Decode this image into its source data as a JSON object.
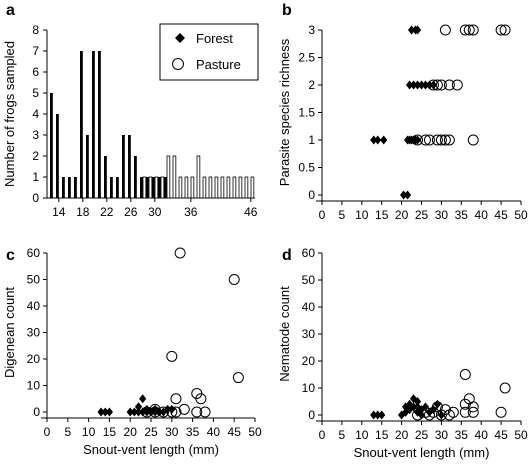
{
  "colors": {
    "forest": "#000000",
    "pasture_fill": "#ffffff",
    "axis": "#000000"
  },
  "legend": {
    "forest": "Forest",
    "pasture": "Pasture",
    "placement": "top-right"
  },
  "chart_data": [
    {
      "id": "a",
      "letter": "a",
      "type": "bar",
      "title": "",
      "xlabel": "",
      "ylabel": "Number of frogs sampled",
      "ylim": [
        0,
        8
      ],
      "yticks": [
        0,
        1,
        2,
        3,
        4,
        5,
        6,
        7,
        8
      ],
      "categories": [
        13,
        14,
        15,
        16,
        17,
        18,
        19,
        20,
        21,
        22,
        23,
        24,
        25,
        26,
        27,
        28,
        29,
        30,
        31,
        32,
        33,
        34,
        35,
        36,
        37,
        38,
        39,
        40,
        41,
        42,
        43,
        44,
        45,
        46
      ],
      "xtick_labels": [
        "14",
        "18",
        "22",
        "26",
        "30",
        "36",
        "46"
      ],
      "xtick_categories": [
        14,
        18,
        22,
        26,
        30,
        36,
        46
      ],
      "series": [
        {
          "name": "Forest",
          "values": [
            5,
            4,
            1,
            1,
            1,
            7,
            3,
            7,
            7,
            2,
            1,
            1,
            3,
            3,
            2,
            1,
            1,
            1,
            1,
            1,
            0,
            0,
            0,
            0,
            0,
            0,
            0,
            0,
            0,
            0,
            0,
            0,
            0,
            0
          ]
        },
        {
          "name": "Pasture",
          "values": [
            0,
            0,
            0,
            0,
            0,
            0,
            0,
            0,
            0,
            0,
            0,
            0,
            0,
            0,
            0,
            1,
            1,
            1,
            1,
            2,
            2,
            1,
            1,
            1,
            2,
            1,
            1,
            1,
            1,
            1,
            1,
            1,
            1,
            1
          ]
        }
      ]
    },
    {
      "id": "b",
      "letter": "b",
      "type": "scatter",
      "title": "",
      "xlabel": "",
      "ylabel": "Parasite species richness",
      "xlim": [
        0,
        50
      ],
      "ylim": [
        0,
        3
      ],
      "xticks": [
        0,
        5,
        10,
        15,
        20,
        25,
        30,
        35,
        40,
        45,
        50
      ],
      "yticks": [
        0,
        0.5,
        1,
        1.5,
        2,
        2.5,
        3
      ],
      "ytick_labels": [
        "0",
        "0.5",
        "1",
        "1.5",
        "2",
        "2.5",
        "3"
      ],
      "series": [
        {
          "name": "Forest",
          "marker": "diamond",
          "points": [
            [
              13,
              1
            ],
            [
              14,
              1
            ],
            [
              15.5,
              1
            ],
            [
              20.5,
              0
            ],
            [
              21.5,
              0
            ],
            [
              21.5,
              1
            ],
            [
              22,
              1
            ],
            [
              22.5,
              1
            ],
            [
              23,
              1
            ],
            [
              23.5,
              1
            ],
            [
              24,
              1
            ],
            [
              22,
              2
            ],
            [
              23,
              2
            ],
            [
              24,
              2
            ],
            [
              25,
              2
            ],
            [
              26,
              2
            ],
            [
              27,
              2
            ],
            [
              28,
              2
            ],
            [
              22.5,
              3
            ],
            [
              23.5,
              3
            ],
            [
              24,
              3
            ]
          ]
        },
        {
          "name": "Pasture",
          "marker": "circle",
          "points": [
            [
              24,
              1
            ],
            [
              26,
              1
            ],
            [
              27,
              1
            ],
            [
              29,
              1
            ],
            [
              30,
              1
            ],
            [
              31,
              1
            ],
            [
              32,
              1
            ],
            [
              38,
              1
            ],
            [
              28,
              2
            ],
            [
              29,
              2
            ],
            [
              30,
              2
            ],
            [
              32,
              2
            ],
            [
              34,
              2
            ],
            [
              31,
              3
            ],
            [
              36,
              3
            ],
            [
              37,
              3
            ],
            [
              38,
              3
            ],
            [
              45,
              3
            ],
            [
              46,
              3
            ]
          ]
        }
      ]
    },
    {
      "id": "c",
      "letter": "c",
      "type": "scatter",
      "title": "",
      "xlabel": "Snout-vent length (mm)",
      "ylabel": "Digenean count",
      "xlim": [
        0,
        50
      ],
      "ylim": [
        0,
        60
      ],
      "xticks": [
        0,
        5,
        10,
        15,
        20,
        25,
        30,
        35,
        40,
        45,
        50
      ],
      "yticks": [
        0,
        10,
        20,
        30,
        40,
        50,
        60
      ],
      "series": [
        {
          "name": "Forest",
          "marker": "diamond",
          "points": [
            [
              13,
              0
            ],
            [
              14,
              0
            ],
            [
              15,
              0
            ],
            [
              20,
              0
            ],
            [
              21,
              0
            ],
            [
              22,
              0
            ],
            [
              23,
              0
            ],
            [
              24,
              0
            ],
            [
              25,
              0
            ],
            [
              26,
              0
            ],
            [
              27,
              0
            ],
            [
              28,
              0
            ],
            [
              24,
              1
            ],
            [
              26,
              1
            ],
            [
              29,
              1
            ],
            [
              30,
              1
            ],
            [
              23,
              5
            ],
            [
              22,
              2
            ]
          ]
        },
        {
          "name": "Pasture",
          "marker": "circle",
          "points": [
            [
              24,
              0
            ],
            [
              26,
              0
            ],
            [
              28,
              0
            ],
            [
              30,
              0
            ],
            [
              31,
              0
            ],
            [
              36,
              0
            ],
            [
              38,
              0
            ],
            [
              26,
              1
            ],
            [
              33,
              1
            ],
            [
              31,
              5
            ],
            [
              37,
              5
            ],
            [
              36,
              7
            ],
            [
              30,
              21
            ],
            [
              32,
              60
            ],
            [
              45,
              50
            ],
            [
              46,
              13
            ]
          ]
        }
      ]
    },
    {
      "id": "d",
      "letter": "d",
      "type": "scatter",
      "title": "",
      "xlabel": "Snout-vent length (mm)",
      "ylabel": "Nematode count",
      "xlim": [
        0,
        50
      ],
      "ylim": [
        0,
        60
      ],
      "xticks": [
        0,
        5,
        10,
        15,
        20,
        25,
        30,
        35,
        40,
        45,
        50
      ],
      "yticks": [
        0,
        10,
        20,
        30,
        40,
        50,
        60
      ],
      "series": [
        {
          "name": "Forest",
          "marker": "diamond",
          "points": [
            [
              13,
              0
            ],
            [
              14,
              0
            ],
            [
              15,
              0
            ],
            [
              20,
              0
            ],
            [
              21,
              1
            ],
            [
              22,
              2
            ],
            [
              22,
              4
            ],
            [
              23,
              6
            ],
            [
              23,
              3
            ],
            [
              24,
              1
            ],
            [
              24,
              5
            ],
            [
              25,
              2
            ],
            [
              25,
              0
            ],
            [
              26,
              3
            ],
            [
              27,
              1
            ],
            [
              28,
              2
            ],
            [
              29,
              4
            ],
            [
              30,
              0
            ],
            [
              21,
              3
            ],
            [
              24,
              3
            ]
          ]
        },
        {
          "name": "Pasture",
          "marker": "circle",
          "points": [
            [
              24,
              0
            ],
            [
              26,
              1
            ],
            [
              27,
              0
            ],
            [
              28,
              1
            ],
            [
              29,
              3
            ],
            [
              30,
              0
            ],
            [
              31,
              2
            ],
            [
              32,
              0
            ],
            [
              33,
              1
            ],
            [
              36,
              1
            ],
            [
              36,
              4
            ],
            [
              37,
              6
            ],
            [
              38,
              3
            ],
            [
              38,
              1
            ],
            [
              36,
              15
            ],
            [
              45,
              1
            ],
            [
              46,
              10
            ]
          ]
        }
      ]
    }
  ]
}
